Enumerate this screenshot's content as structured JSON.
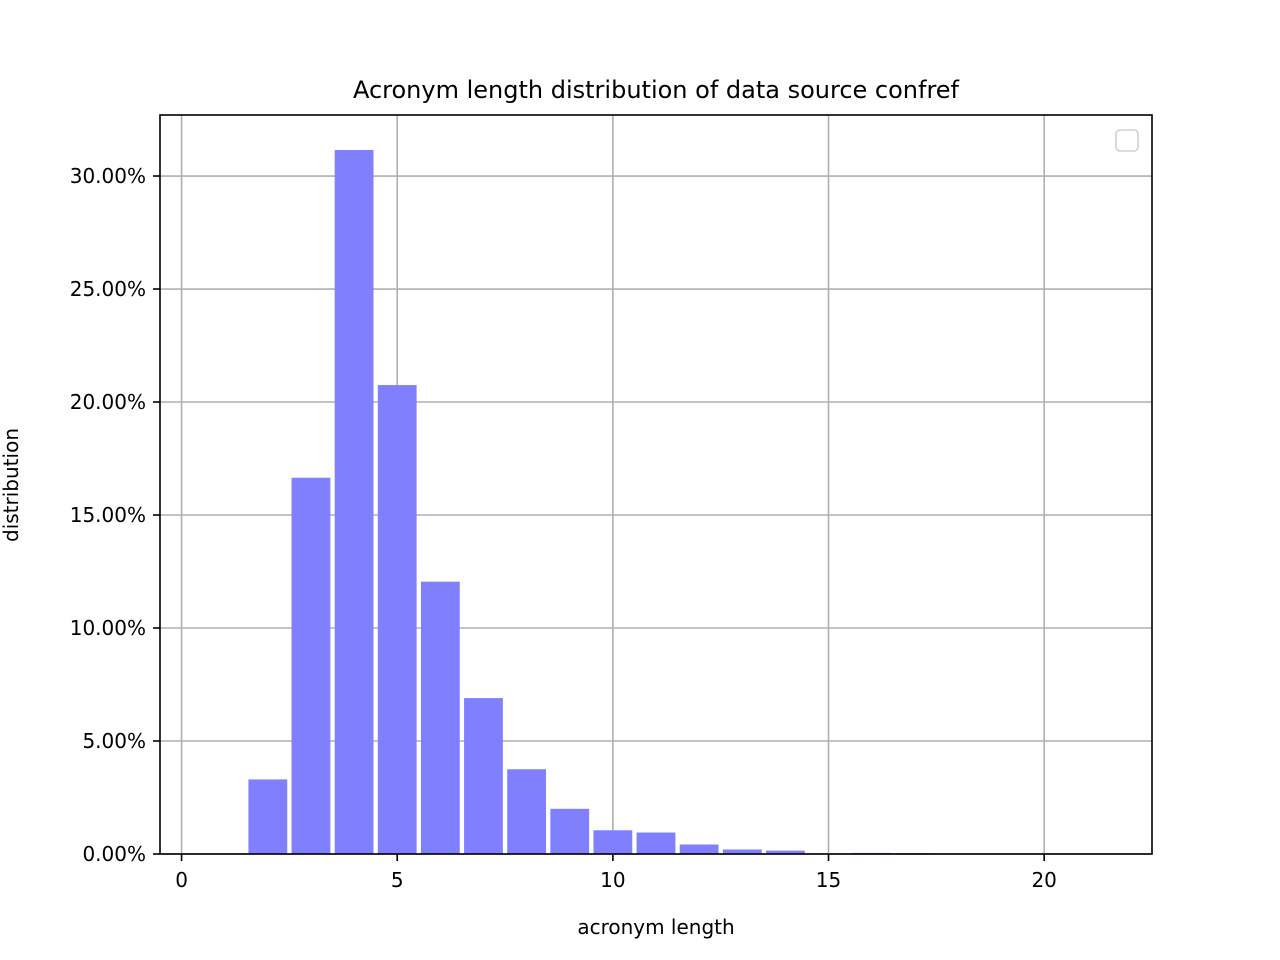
{
  "chart_data": {
    "type": "bar",
    "title": "Acronym length distribution of data source confref",
    "xlabel": "acronym length",
    "ylabel": "distribution",
    "x": [
      2,
      3,
      4,
      5,
      6,
      7,
      8,
      9,
      10,
      11,
      12,
      13,
      14,
      15,
      16,
      17,
      18,
      19,
      20,
      21
    ],
    "values": [
      3.3,
      16.65,
      31.15,
      20.75,
      12.05,
      6.9,
      3.75,
      2.0,
      1.05,
      0.95,
      0.42,
      0.2,
      0.15,
      0.0,
      0.05,
      0.04,
      0.0,
      0.0,
      0.0,
      0.0
    ],
    "xlim": [
      -0.5,
      22.5
    ],
    "ylim": [
      0,
      32.7
    ],
    "xticks": [
      0,
      5,
      10,
      15,
      20
    ],
    "xtick_labels": [
      "0",
      "5",
      "10",
      "15",
      "20"
    ],
    "yticks": [
      0,
      5,
      10,
      15,
      20,
      25,
      30
    ],
    "ytick_labels": [
      "0.00%",
      "5.00%",
      "10.00%",
      "15.00%",
      "20.00%",
      "25.00%",
      "30.00%"
    ],
    "bar_color": "#8080ff",
    "grid": true,
    "legend": "top-right (empty)"
  }
}
